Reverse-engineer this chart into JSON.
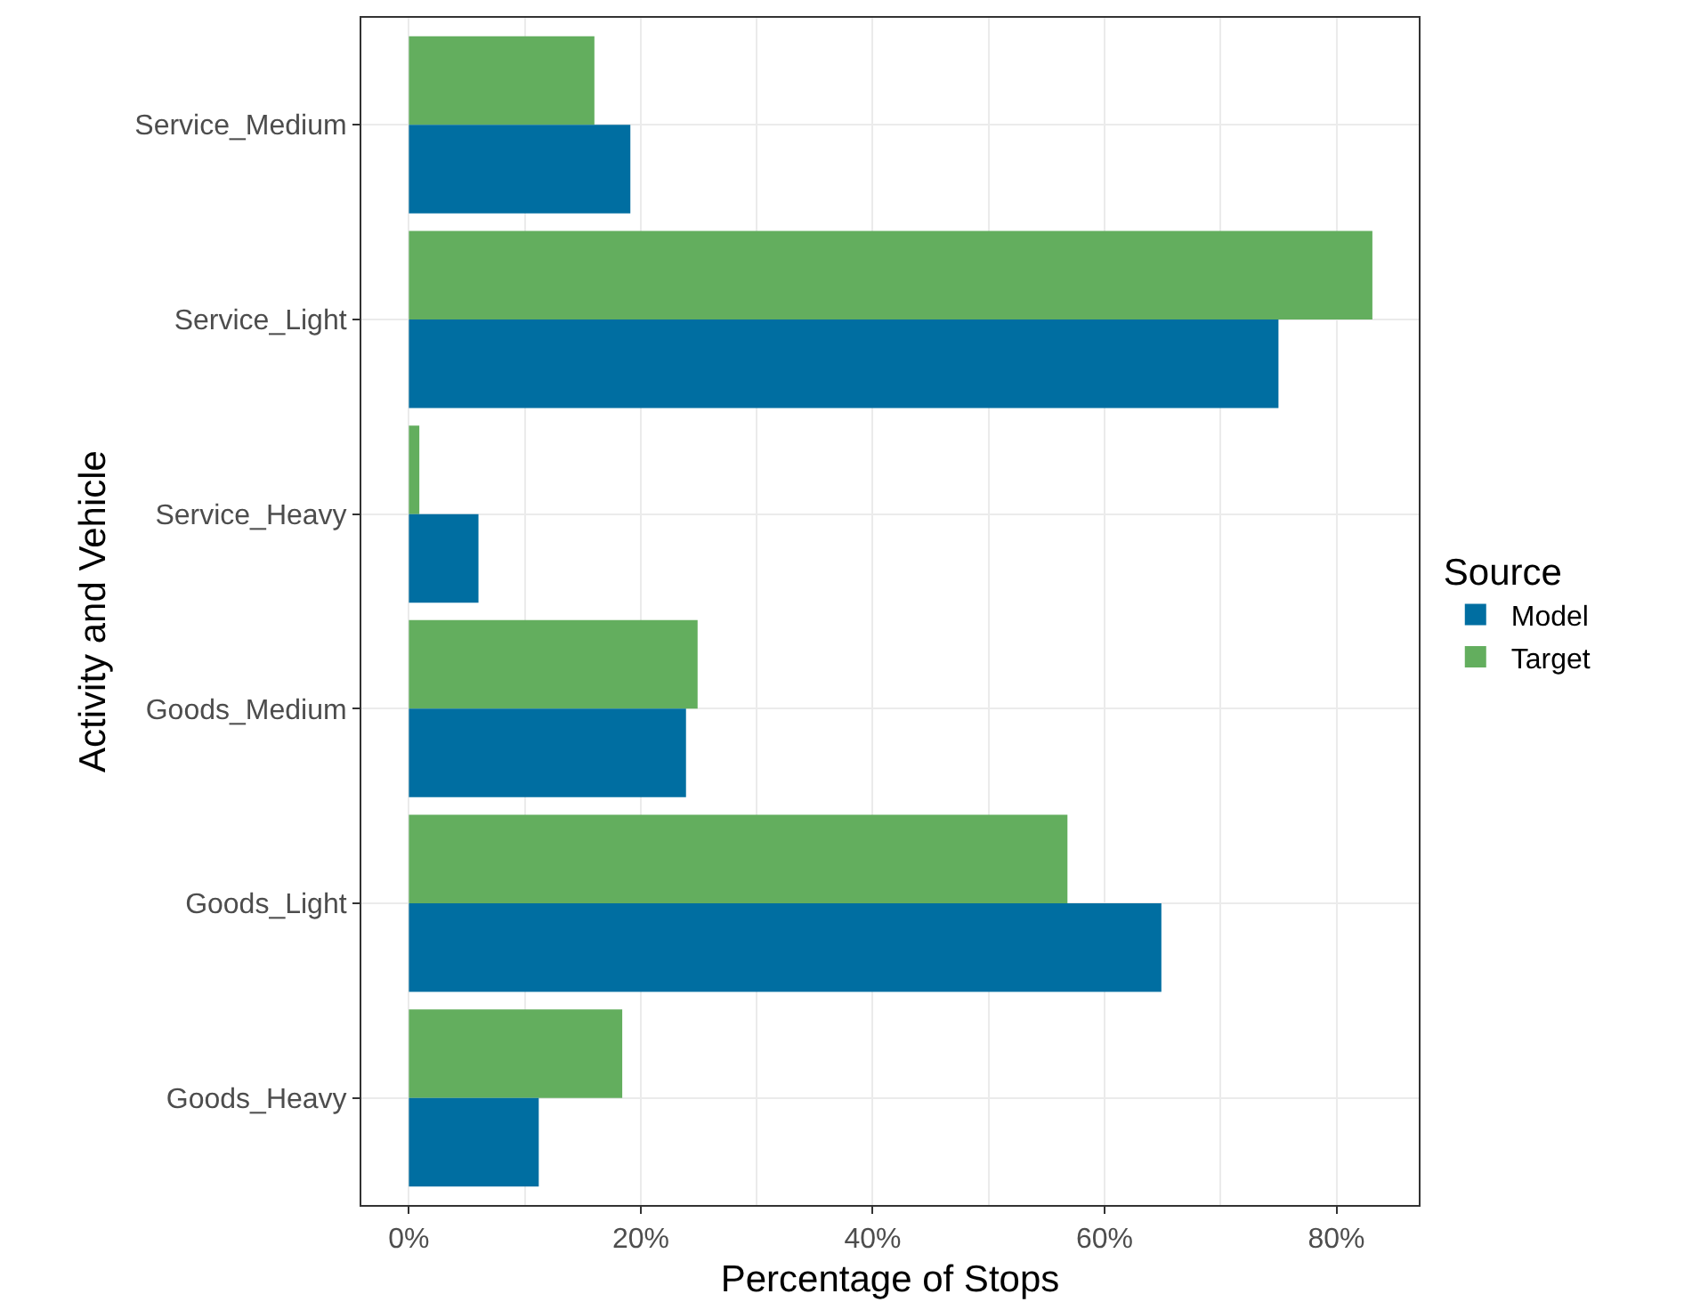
{
  "chart_data": {
    "type": "bar",
    "orientation": "horizontal",
    "xlabel": "Percentage of Stops",
    "ylabel": "Activity and Vehicle",
    "legend_title": "Source",
    "legend": "right",
    "grid": true,
    "categories": [
      "Service_Medium",
      "Service_Light",
      "Service_Heavy",
      "Goods_Medium",
      "Goods_Light",
      "Goods_Heavy"
    ],
    "series": [
      {
        "name": "Model",
        "color": "#006ea1",
        "values": [
          19.1,
          75.0,
          6.0,
          23.9,
          64.9,
          11.2
        ]
      },
      {
        "name": "Target",
        "color": "#63ae5e",
        "values": [
          16.0,
          83.1,
          0.9,
          24.9,
          56.8,
          18.4
        ]
      }
    ],
    "xlim": [
      -4.1,
      87.1
    ],
    "xticks": [
      {
        "value": 0,
        "label": "0%"
      },
      {
        "value": 20,
        "label": "20%"
      },
      {
        "value": 40,
        "label": "40%"
      },
      {
        "value": 60,
        "label": "60%"
      },
      {
        "value": 80,
        "label": "80%"
      }
    ]
  }
}
